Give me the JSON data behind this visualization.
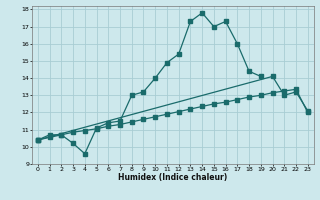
{
  "xlabel": "Humidex (Indice chaleur)",
  "bg_color": "#cde8ec",
  "grid_color": "#a8cdd4",
  "line_color": "#1a6b6b",
  "xlim": [
    -0.5,
    23.5
  ],
  "ylim": [
    9,
    18.2
  ],
  "xticks": [
    0,
    1,
    2,
    3,
    4,
    5,
    6,
    7,
    8,
    9,
    10,
    11,
    12,
    13,
    14,
    15,
    16,
    17,
    18,
    19,
    20,
    21,
    22,
    23
  ],
  "yticks": [
    9,
    10,
    11,
    12,
    13,
    14,
    15,
    16,
    17,
    18
  ],
  "line1_x": [
    0,
    1,
    2,
    3,
    4,
    5,
    6,
    7,
    8,
    9,
    10,
    11,
    12,
    13,
    14,
    15,
    16,
    17,
    18,
    19
  ],
  "line1_y": [
    10.4,
    10.7,
    10.7,
    10.2,
    9.6,
    11.1,
    11.4,
    11.5,
    13.0,
    13.2,
    14.0,
    14.9,
    15.4,
    17.3,
    17.8,
    17.0,
    17.3,
    16.0,
    14.4,
    14.1
  ],
  "line2_x": [
    0,
    20,
    21,
    22,
    23
  ],
  "line2_y": [
    10.4,
    14.1,
    13.0,
    13.2,
    12.1
  ],
  "line3_x": [
    0,
    1,
    2,
    3,
    4,
    5,
    6,
    7,
    8,
    9,
    10,
    11,
    12,
    13,
    14,
    15,
    16,
    17,
    18,
    19,
    20,
    21,
    22,
    23
  ],
  "line3_y": [
    10.4,
    10.55,
    10.7,
    10.85,
    10.95,
    11.05,
    11.2,
    11.3,
    11.45,
    11.6,
    11.75,
    11.9,
    12.05,
    12.2,
    12.35,
    12.5,
    12.6,
    12.75,
    12.9,
    13.0,
    13.15,
    13.25,
    13.35,
    12.0
  ]
}
